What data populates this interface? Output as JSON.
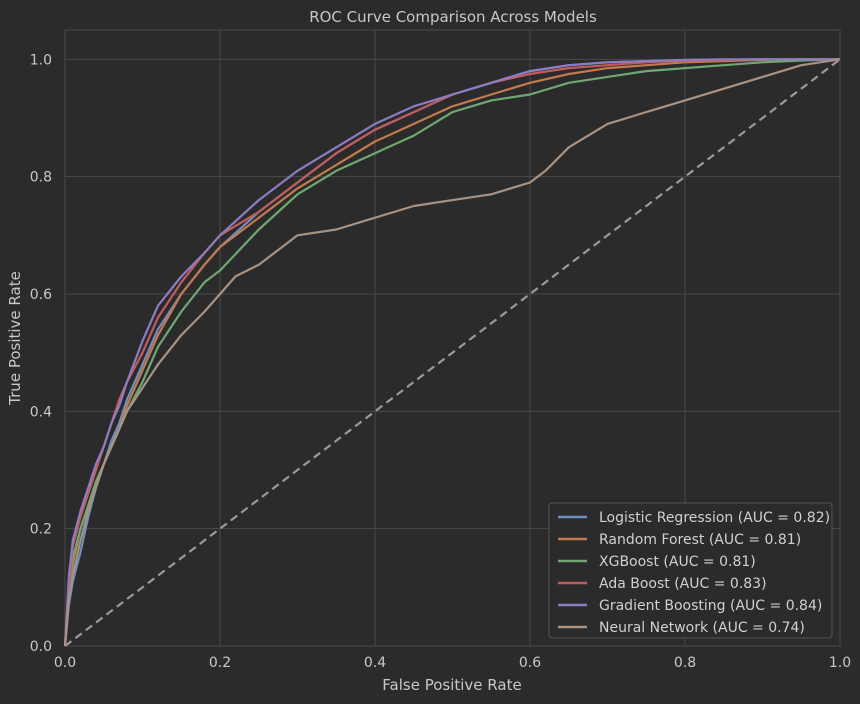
{
  "chart_data": {
    "type": "line",
    "title": "ROC Curve Comparison Across Models",
    "xlabel": "False Positive Rate",
    "ylabel": "True Positive Rate",
    "xlim": [
      0.0,
      1.0
    ],
    "ylim": [
      0.0,
      1.05
    ],
    "xticks": [
      "0.0",
      "0.2",
      "0.4",
      "0.6",
      "0.8",
      "1.0"
    ],
    "yticks": [
      "0.0",
      "0.2",
      "0.4",
      "0.6",
      "0.8",
      "1.0"
    ],
    "grid": true,
    "legend_position": "lower-right",
    "background": "#2b2b2b",
    "grid_color": "#4a4a4a",
    "series": [
      {
        "name": "Logistic Regression (AUC = 0.82)",
        "color": "#6f8fc2",
        "x": [
          0,
          0.005,
          0.01,
          0.02,
          0.03,
          0.04,
          0.05,
          0.06,
          0.07,
          0.08,
          0.1,
          0.12,
          0.15,
          0.18,
          0.2,
          0.25,
          0.3,
          0.35,
          0.4,
          0.45,
          0.5,
          0.55,
          0.6,
          0.65,
          0.7,
          0.75,
          0.8,
          0.85,
          0.9,
          0.95,
          1.0
        ],
        "y": [
          0,
          0.07,
          0.11,
          0.16,
          0.22,
          0.27,
          0.31,
          0.35,
          0.38,
          0.42,
          0.48,
          0.54,
          0.6,
          0.65,
          0.68,
          0.74,
          0.79,
          0.84,
          0.88,
          0.91,
          0.94,
          0.96,
          0.98,
          0.99,
          0.995,
          0.997,
          0.998,
          0.999,
          1.0,
          1.0,
          1.0
        ]
      },
      {
        "name": "Random Forest (AUC = 0.81)",
        "color": "#c27a4e",
        "x": [
          0,
          0.005,
          0.01,
          0.02,
          0.03,
          0.04,
          0.05,
          0.06,
          0.07,
          0.08,
          0.1,
          0.12,
          0.15,
          0.18,
          0.2,
          0.25,
          0.3,
          0.35,
          0.4,
          0.45,
          0.5,
          0.55,
          0.6,
          0.65,
          0.7,
          0.75,
          0.8,
          0.85,
          0.9,
          0.95,
          1.0
        ],
        "y": [
          0,
          0.08,
          0.14,
          0.2,
          0.24,
          0.28,
          0.31,
          0.34,
          0.37,
          0.41,
          0.47,
          0.53,
          0.6,
          0.65,
          0.68,
          0.73,
          0.78,
          0.82,
          0.86,
          0.89,
          0.92,
          0.94,
          0.96,
          0.975,
          0.985,
          0.99,
          0.995,
          0.997,
          0.999,
          1.0,
          1.0
        ]
      },
      {
        "name": "XGBoost (AUC = 0.81)",
        "color": "#6fa872",
        "x": [
          0,
          0.005,
          0.01,
          0.02,
          0.03,
          0.04,
          0.05,
          0.06,
          0.07,
          0.08,
          0.1,
          0.12,
          0.15,
          0.18,
          0.2,
          0.25,
          0.3,
          0.35,
          0.4,
          0.45,
          0.5,
          0.55,
          0.6,
          0.65,
          0.7,
          0.75,
          0.8,
          0.85,
          0.9,
          0.95,
          1.0
        ],
        "y": [
          0,
          0.1,
          0.15,
          0.2,
          0.24,
          0.28,
          0.31,
          0.34,
          0.37,
          0.4,
          0.45,
          0.51,
          0.57,
          0.62,
          0.64,
          0.71,
          0.77,
          0.81,
          0.84,
          0.87,
          0.91,
          0.93,
          0.94,
          0.96,
          0.97,
          0.98,
          0.985,
          0.99,
          0.995,
          0.998,
          1.0
        ]
      },
      {
        "name": "Ada Boost (AUC = 0.83)",
        "color": "#c05c5c",
        "x": [
          0,
          0.005,
          0.01,
          0.02,
          0.03,
          0.04,
          0.05,
          0.06,
          0.07,
          0.08,
          0.1,
          0.12,
          0.15,
          0.18,
          0.2,
          0.25,
          0.3,
          0.35,
          0.4,
          0.45,
          0.5,
          0.55,
          0.6,
          0.65,
          0.7,
          0.75,
          0.8,
          0.85,
          0.9,
          0.95,
          1.0
        ],
        "y": [
          0,
          0.1,
          0.17,
          0.22,
          0.26,
          0.3,
          0.34,
          0.38,
          0.42,
          0.45,
          0.5,
          0.56,
          0.62,
          0.67,
          0.7,
          0.74,
          0.79,
          0.84,
          0.88,
          0.91,
          0.94,
          0.96,
          0.975,
          0.985,
          0.99,
          0.995,
          0.998,
          0.999,
          1.0,
          1.0,
          1.0
        ]
      },
      {
        "name": "Gradient Boosting (AUC = 0.84)",
        "color": "#8e7cc3",
        "x": [
          0,
          0.005,
          0.01,
          0.02,
          0.03,
          0.04,
          0.05,
          0.06,
          0.07,
          0.08,
          0.1,
          0.12,
          0.15,
          0.18,
          0.2,
          0.25,
          0.3,
          0.35,
          0.4,
          0.45,
          0.5,
          0.55,
          0.6,
          0.65,
          0.7,
          0.75,
          0.8,
          0.85,
          0.9,
          0.95,
          1.0
        ],
        "y": [
          0,
          0.12,
          0.18,
          0.23,
          0.27,
          0.31,
          0.34,
          0.38,
          0.41,
          0.45,
          0.52,
          0.58,
          0.63,
          0.67,
          0.7,
          0.76,
          0.81,
          0.85,
          0.89,
          0.92,
          0.94,
          0.96,
          0.98,
          0.99,
          0.995,
          0.997,
          0.999,
          1.0,
          1.0,
          1.0,
          1.0
        ]
      },
      {
        "name": "Neural Network (AUC = 0.74)",
        "color": "#a89282",
        "x": [
          0,
          0.005,
          0.01,
          0.02,
          0.03,
          0.04,
          0.05,
          0.06,
          0.07,
          0.08,
          0.1,
          0.12,
          0.15,
          0.18,
          0.2,
          0.22,
          0.25,
          0.28,
          0.3,
          0.35,
          0.4,
          0.45,
          0.5,
          0.55,
          0.6,
          0.62,
          0.65,
          0.7,
          0.75,
          0.8,
          0.85,
          0.9,
          0.95,
          1.0
        ],
        "y": [
          0,
          0.08,
          0.12,
          0.18,
          0.23,
          0.27,
          0.31,
          0.34,
          0.37,
          0.4,
          0.44,
          0.48,
          0.53,
          0.57,
          0.6,
          0.63,
          0.65,
          0.68,
          0.7,
          0.71,
          0.73,
          0.75,
          0.76,
          0.77,
          0.79,
          0.81,
          0.85,
          0.89,
          0.91,
          0.93,
          0.95,
          0.97,
          0.99,
          1.0
        ]
      }
    ],
    "reference_line": {
      "x": [
        0,
        1
      ],
      "y": [
        0,
        1
      ],
      "color": "#9a9a9a",
      "style": "dashed"
    }
  }
}
